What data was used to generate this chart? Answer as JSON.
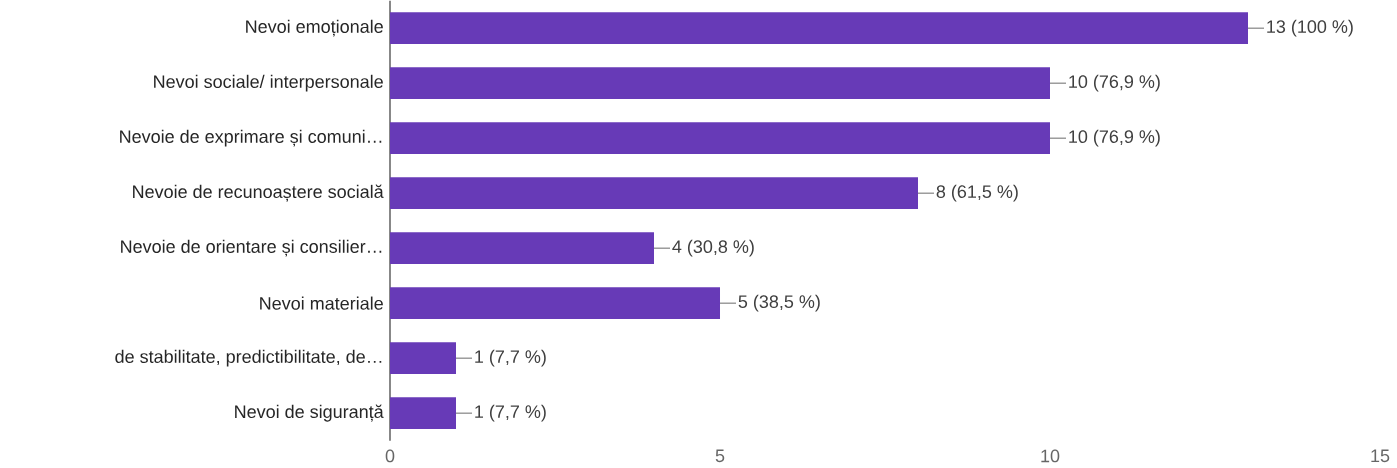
{
  "chart_data": {
    "type": "bar",
    "orientation": "horizontal",
    "categories": [
      "Nevoi emoționale",
      "Nevoi sociale/ interpersonale",
      "Nevoie de exprimare și comuni…",
      "Nevoie de recunoaștere socială",
      "Nevoie de orientare și consilier…",
      "Nevoi materiale",
      "de stabilitate, predictibilitate, de…",
      "Nevoi de siguranță"
    ],
    "values": [
      13,
      10,
      10,
      8,
      4,
      5,
      1,
      1
    ],
    "value_labels": [
      "13 (100 %)",
      "10 (76,9 %)",
      "10 (76,9 %)",
      "8 (61,5 %)",
      "4 (30,8 %)",
      "5 (38,5 %)",
      "1 (7,7 %)",
      "1 (7,7 %)"
    ],
    "color": "#673ab7",
    "xlim": [
      0,
      15
    ],
    "xticks": [
      0,
      5,
      10,
      15
    ]
  }
}
